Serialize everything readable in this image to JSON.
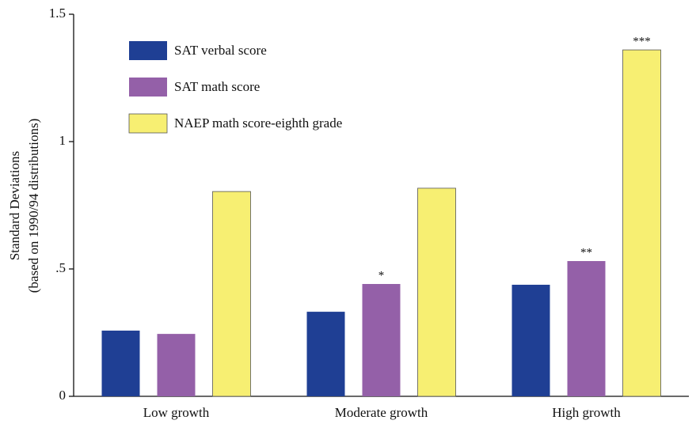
{
  "chart_data": {
    "type": "bar",
    "y_label": [
      "Standard Deviations",
      "(based on 1990/94 distributions)"
    ],
    "categories": [
      "Low growth",
      "Moderate growth",
      "High growth"
    ],
    "series": [
      {
        "name": "SAT verbal score",
        "color": "#1f3f94",
        "values": [
          0.258,
          0.332,
          0.438
        ],
        "annotations": [
          null,
          null,
          null
        ]
      },
      {
        "name": "SAT math score",
        "color": "#9460a8",
        "values": [
          0.245,
          0.441,
          0.531
        ],
        "annotations": [
          null,
          "*",
          "**"
        ]
      },
      {
        "name": "NAEP math score-eighth grade",
        "color": "#f7ef72",
        "values": [
          0.804,
          0.817,
          1.36
        ],
        "annotations": [
          null,
          null,
          "***"
        ]
      }
    ],
    "ylim": [
      0,
      1.5
    ],
    "yticks": [
      0,
      {
        "value": 0.5,
        "label": ".5"
      },
      1,
      1.5
    ],
    "legend": "top-left"
  }
}
